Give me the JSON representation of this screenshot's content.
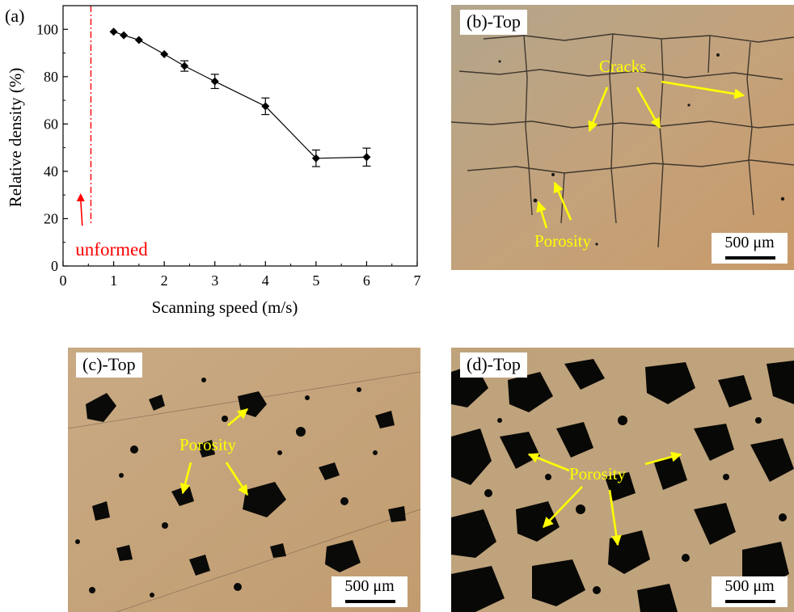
{
  "chart_data": {
    "type": "line",
    "panel_label": "(a)",
    "xlabel": "Scanning speed (m/s)",
    "ylabel": "Relative density (%)",
    "xlim": [
      0,
      7
    ],
    "ylim": [
      0,
      110
    ],
    "x_ticks": [
      0,
      1,
      2,
      3,
      4,
      5,
      6,
      7
    ],
    "y_ticks": [
      0,
      20,
      40,
      60,
      80,
      100
    ],
    "grid": false,
    "x": [
      1.0,
      1.2,
      1.5,
      2.0,
      2.4,
      3.0,
      4.0,
      5.0,
      6.0
    ],
    "values": [
      99.0,
      97.5,
      95.5,
      89.5,
      84.5,
      78.0,
      67.5,
      45.5,
      46.0
    ],
    "errors": [
      0,
      0,
      0,
      0,
      2.2,
      3.0,
      3.5,
      3.5,
      3.8
    ],
    "threshold_x": 0.55,
    "threshold_color": "#ff0000",
    "annotation_text": "unformed",
    "annotation_color": "#ff0000",
    "marker_color": "#000000"
  },
  "panels": {
    "b": {
      "label": "(b)-Top",
      "scale_bar": "500 μm",
      "annotations": [
        "Cracks",
        "Porosity"
      ]
    },
    "c": {
      "label": "(c)-Top",
      "scale_bar": "500 μm",
      "annotations": [
        "Porosity"
      ]
    },
    "d": {
      "label": "(d)-Top",
      "scale_bar": "500 μm",
      "annotations": [
        "Porosity"
      ]
    }
  },
  "colors": {
    "micrograph_bg": "#c4a27a",
    "pore": "#0a0a08",
    "annotation_arrow": "#ffff00"
  }
}
